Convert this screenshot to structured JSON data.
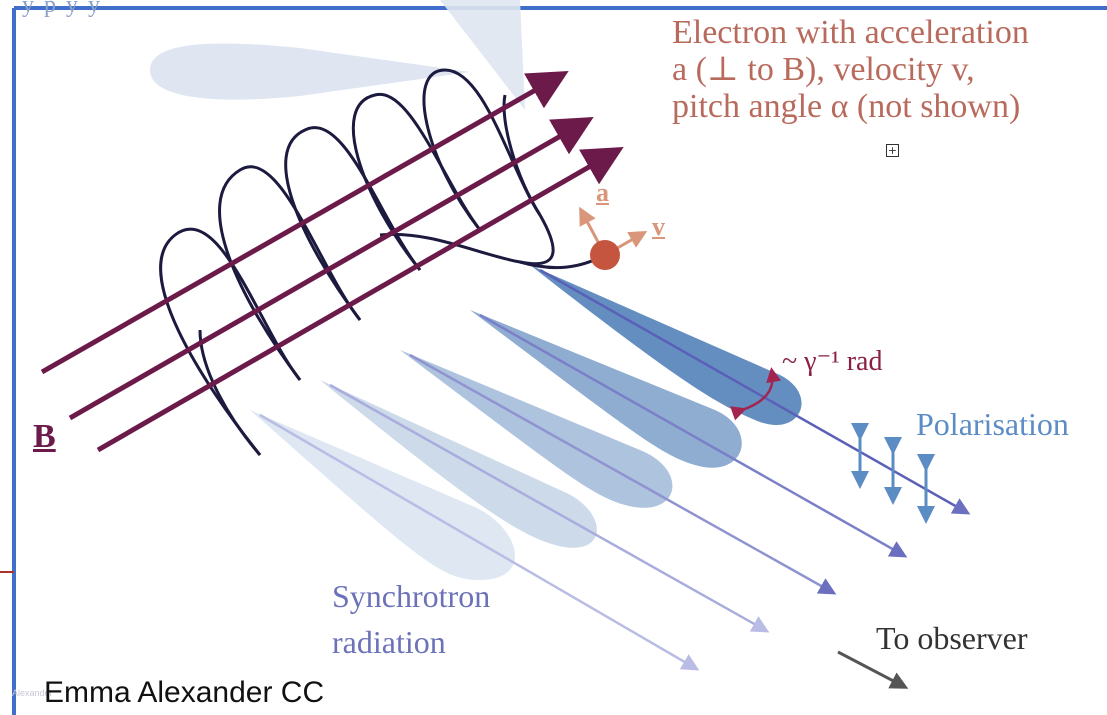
{
  "title": {
    "line1": "Electron with acceleration",
    "line2": "a (⊥ to B), velocity v,",
    "line3": "pitch angle α (not shown)"
  },
  "labels": {
    "b_field": "B",
    "acceleration": "a",
    "velocity": "v",
    "beam_angle": "~ γ⁻¹ rad",
    "polarisation": "Polarisation",
    "synchrotron_line1": "Synchrotron",
    "synchrotron_line2": "radiation",
    "to_observer": "To observer",
    "top_faint": "y p          y     y"
  },
  "credit": "Emma Alexander CC",
  "faint_credit": "Alexander",
  "colors": {
    "b_field": "#6b1a4a",
    "helix": "#1c1a3e",
    "title": "#b86a5c",
    "electron": "#c5553f",
    "vectors": "#d9967a",
    "beam": "#4a7ab5",
    "rays": "#6a6fc0",
    "polarisation": "#5b8cc4",
    "synchrotron": "#6c72b8",
    "observer": "#555555",
    "border": "#3f6fca"
  },
  "icons": {
    "expand": "expand-icon"
  }
}
